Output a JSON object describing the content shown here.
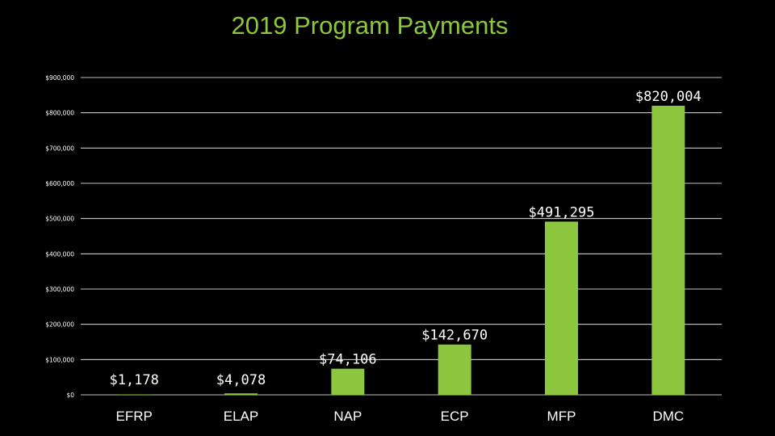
{
  "colors": {
    "background": "#000000",
    "bar": "#8dc63f",
    "title": "#8dc63f",
    "text": "#ffffff",
    "grid": "#ffffff"
  },
  "chart_data": {
    "type": "bar",
    "title": "2019 Program Payments",
    "xlabel": "",
    "ylabel": "",
    "categories": [
      "EFRP",
      "ELAP",
      "NAP",
      "ECP",
      "MFP",
      "DMC"
    ],
    "values": [
      1178,
      4078,
      74106,
      142670,
      491295,
      820004
    ],
    "data_labels": [
      "$1,178",
      "$4,078",
      "$74,106",
      "$142,670",
      "$491,295",
      "$820,004"
    ],
    "ylim": [
      0,
      900000
    ],
    "yticks": [
      0,
      100000,
      200000,
      300000,
      400000,
      500000,
      600000,
      700000,
      800000,
      900000
    ],
    "ytick_labels": [
      "$0",
      "$100,000",
      "$200,000",
      "$300,000",
      "$400,000",
      "$500,000",
      "$600,000",
      "$700,000",
      "$800,000",
      "$900,000"
    ],
    "grid": true,
    "legend": "none"
  }
}
